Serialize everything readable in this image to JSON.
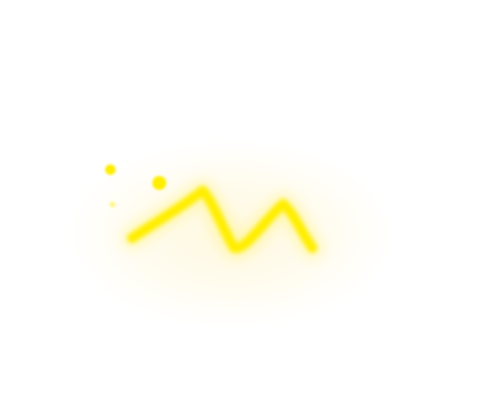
{
  "art": {
    "background": "#ffffff",
    "stroke_color": "#ffee00",
    "halo_color": "#fff3c4",
    "glow_color": "#fff36a"
  }
}
